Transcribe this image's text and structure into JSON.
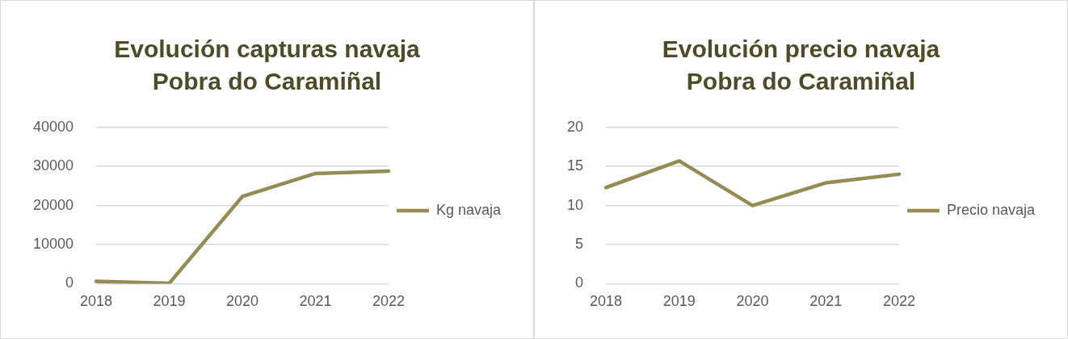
{
  "chart_data": [
    {
      "type": "line",
      "title": "Evolución capturas navaja Pobra do Caramiñal",
      "categories": [
        "2018",
        "2019",
        "2020",
        "2021",
        "2022"
      ],
      "series": [
        {
          "name": "Kg navaja",
          "color": "#958b55",
          "values": [
            600,
            100,
            22300,
            28200,
            28800
          ]
        }
      ],
      "ylim": [
        0,
        40000
      ],
      "yticks": [
        0,
        10000,
        20000,
        30000,
        40000
      ],
      "grid": "y",
      "legend": "right",
      "marker": "none",
      "line_style": "solid"
    },
    {
      "type": "line",
      "title": "Evolución precio navaja Pobra do Caramiñal",
      "categories": [
        "2018",
        "2019",
        "2020",
        "2021",
        "2022"
      ],
      "series": [
        {
          "name": "Precio navaja",
          "color": "#958b55",
          "values": [
            12.3,
            15.7,
            10.0,
            12.9,
            14.0
          ]
        }
      ],
      "ylim": [
        0,
        20
      ],
      "yticks": [
        0,
        5,
        10,
        15,
        20
      ],
      "grid": "y",
      "legend": "right",
      "marker": "none",
      "line_style": "solid"
    }
  ]
}
